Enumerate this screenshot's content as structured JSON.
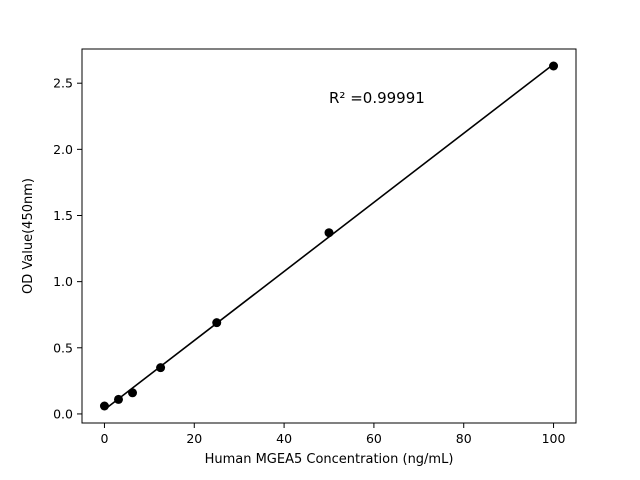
{
  "chart_data": {
    "type": "scatter",
    "title": "",
    "xlabel": "Human MGEA5 Concentration (ng/mL)",
    "ylabel": "OD Value(450nm)",
    "x": [
      0,
      3.125,
      6.25,
      12.5,
      25,
      50,
      100
    ],
    "y": [
      0.06,
      0.11,
      0.16,
      0.35,
      0.69,
      1.37,
      2.63
    ],
    "xlim": [
      -5,
      105
    ],
    "ylim": [
      -0.0685,
      2.7585
    ],
    "xticks": [
      0,
      20,
      40,
      60,
      80,
      100
    ],
    "yticks": [
      0.0,
      0.5,
      1.0,
      1.5,
      2.0,
      2.5
    ],
    "annotation": {
      "text": "R² =0.99991",
      "x": 50,
      "y": 2.35
    },
    "fit_line": true,
    "marker_color": "#000000",
    "line_color": "#000000",
    "background_color": "#ffffff",
    "grid": false,
    "legend_position": "none"
  }
}
